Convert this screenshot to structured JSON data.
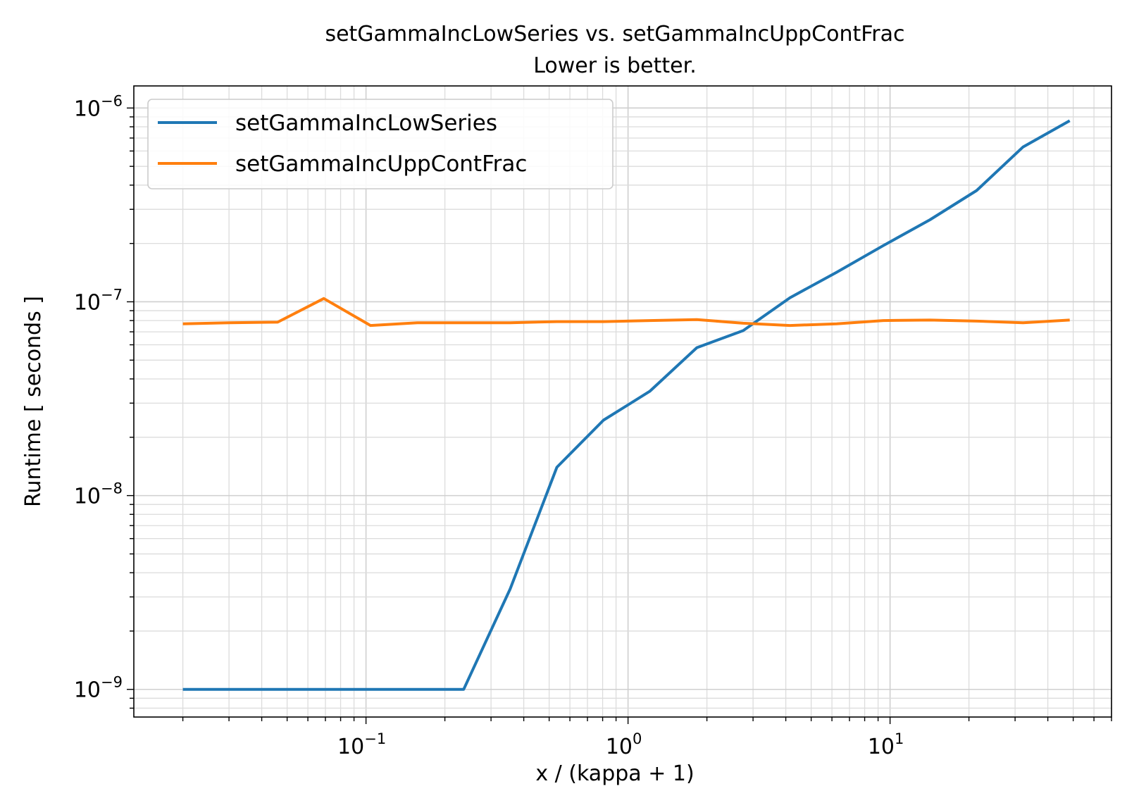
{
  "chart_data": {
    "type": "line",
    "title": "setGammaIncLowSeries vs. setGammaIncUppContFrac",
    "subtitle": "Lower is better.",
    "xlabel": "x / (kappa + 1)",
    "ylabel": "Runtime [ seconds ]",
    "xscale": "log",
    "yscale": "log",
    "xlim": [
      0.013,
      70
    ],
    "ylim": [
      7.2e-10,
      1.3e-06
    ],
    "grid": "both major and minor",
    "legend_position": "top-left",
    "x_ticks": [
      {
        "value": 0.1,
        "base": "10",
        "exp": "−1"
      },
      {
        "value": 1,
        "base": "10",
        "exp": "0"
      },
      {
        "value": 10,
        "base": "10",
        "exp": "1"
      }
    ],
    "y_ticks": [
      {
        "value": 1e-09,
        "base": "10",
        "exp": "−9"
      },
      {
        "value": 1e-08,
        "base": "10",
        "exp": "−8"
      },
      {
        "value": 1e-07,
        "base": "10",
        "exp": "−7"
      },
      {
        "value": 1e-06,
        "base": "10",
        "exp": "−6"
      }
    ],
    "series": [
      {
        "name": "setGammaIncLowSeries",
        "color": "#1f77b4",
        "x": [
          0.02,
          0.03,
          0.046,
          0.069,
          0.104,
          0.157,
          0.236,
          0.355,
          0.535,
          0.806,
          1.21,
          1.83,
          2.75,
          4.15,
          6.25,
          9.42,
          14.2,
          21.4,
          32.2,
          48.5
        ],
        "y": [
          1e-09,
          1e-09,
          1e-09,
          1e-09,
          1e-09,
          1e-09,
          1e-09,
          3.3e-09,
          1.4e-08,
          2.45e-08,
          3.45e-08,
          5.8e-08,
          7.1e-08,
          1.05e-07,
          1.42e-07,
          1.95e-07,
          2.65e-07,
          3.75e-07,
          6.3e-07,
          8.6e-07
        ]
      },
      {
        "name": "setGammaIncUppContFrac",
        "color": "#ff7f0e",
        "x": [
          0.02,
          0.03,
          0.046,
          0.069,
          0.104,
          0.157,
          0.236,
          0.355,
          0.535,
          0.806,
          1.21,
          1.83,
          2.75,
          4.15,
          6.25,
          9.42,
          14.2,
          21.4,
          32.2,
          48.5
        ],
        "y": [
          7.7e-08,
          7.8e-08,
          7.85e-08,
          1.04e-07,
          7.55e-08,
          7.8e-08,
          7.8e-08,
          7.8e-08,
          7.9e-08,
          7.9e-08,
          8e-08,
          8.1e-08,
          7.75e-08,
          7.55e-08,
          7.7e-08,
          8e-08,
          8.05e-08,
          7.95e-08,
          7.8e-08,
          8.05e-08
        ]
      }
    ]
  }
}
